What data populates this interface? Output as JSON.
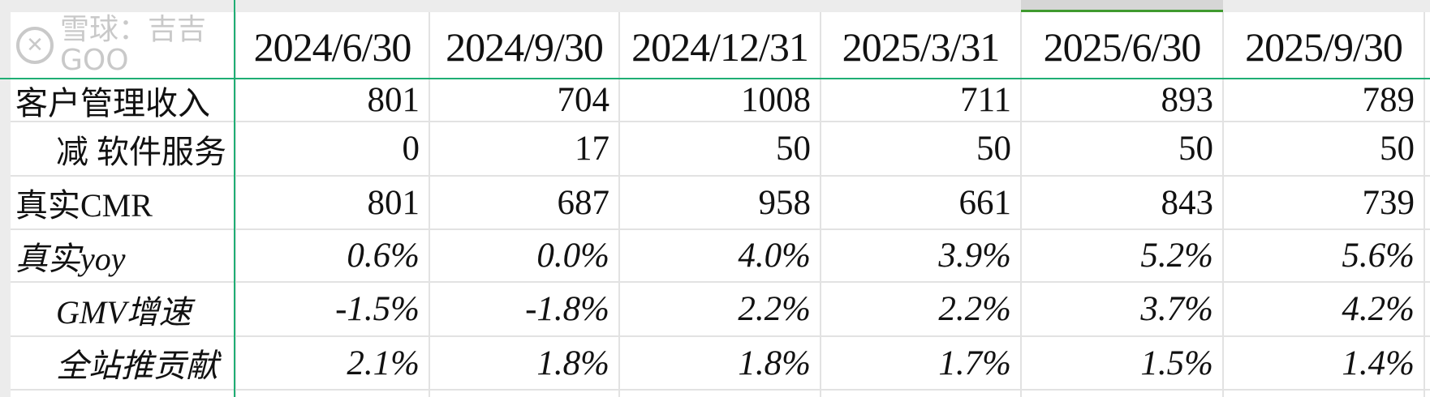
{
  "columns": [
    "2024/6/30",
    "2024/9/30",
    "2024/12/31",
    "2025/3/31",
    "2025/6/30",
    "2025/9/30"
  ],
  "selected_column": "2025/6/30",
  "rows": [
    {
      "label": "客户管理收入",
      "indent": false,
      "italic": false,
      "values": [
        "801",
        "704",
        "1008",
        "711",
        "893",
        "789"
      ]
    },
    {
      "label": "减 软件服务",
      "indent": true,
      "italic": false,
      "values": [
        "0",
        "17",
        "50",
        "50",
        "50",
        "50"
      ]
    },
    {
      "label": "真实CMR",
      "indent": false,
      "italic": false,
      "values": [
        "801",
        "687",
        "958",
        "661",
        "843",
        "739"
      ]
    },
    {
      "label": "真实yoy",
      "indent": false,
      "italic": true,
      "values": [
        "0.6%",
        "0.0%",
        "4.0%",
        "3.9%",
        "5.2%",
        "5.6%"
      ]
    },
    {
      "label": "GMV增速",
      "indent": true,
      "italic": true,
      "values": [
        "-1.5%",
        "-1.8%",
        "2.2%",
        "2.2%",
        "3.7%",
        "4.2%"
      ]
    },
    {
      "label": "全站推贡献",
      "indent": true,
      "italic": true,
      "values": [
        "2.1%",
        "1.8%",
        "1.8%",
        "1.7%",
        "1.5%",
        "1.4%"
      ]
    }
  ],
  "watermark": {
    "text": "雪球：吉吉GOO",
    "icon": "xueqiu-logo-icon"
  },
  "colors": {
    "freeze_line": "#1fae74",
    "selected_column_bar": "#3f9a2f",
    "gridline": "#e2e2e2"
  }
}
